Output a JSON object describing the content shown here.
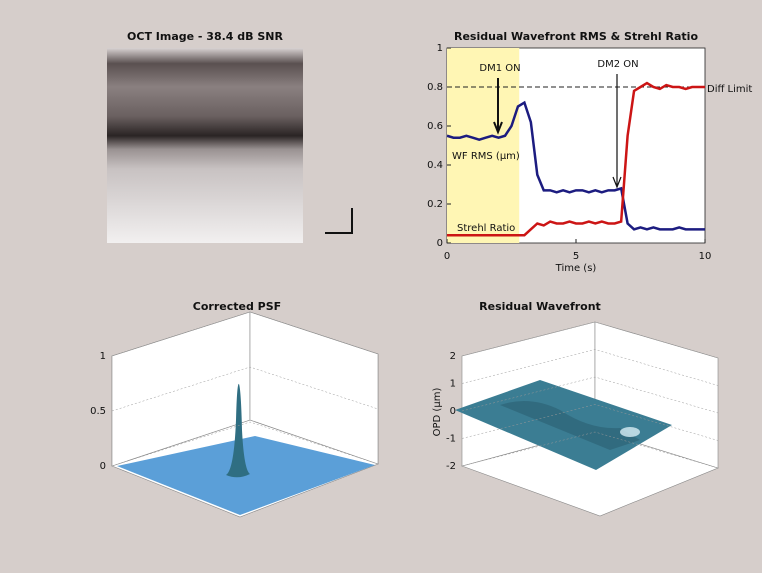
{
  "chart_data": [
    {
      "type": "image",
      "title": "OCT Image - 38.4 dB SNR"
    },
    {
      "type": "line",
      "title": "Residual Wavefront RMS & Strehl Ratio",
      "xlabel": "Time (s)",
      "x": [
        0,
        0.25,
        0.5,
        0.75,
        1,
        1.25,
        1.5,
        1.75,
        2,
        2.25,
        2.5,
        2.75,
        3,
        3.25,
        3.5,
        3.75,
        4,
        4.25,
        4.5,
        4.75,
        5,
        5.25,
        5.5,
        5.75,
        6,
        6.25,
        6.5,
        6.75,
        7,
        7.25,
        7.5,
        7.75,
        8,
        8.25,
        8.5,
        8.75,
        9,
        9.25,
        9.5,
        9.75,
        10
      ],
      "series": [
        {
          "name": "WF RMS (μm)",
          "color": "#1c1c80",
          "values": [
            0.55,
            0.54,
            0.54,
            0.55,
            0.54,
            0.53,
            0.54,
            0.55,
            0.54,
            0.55,
            0.6,
            0.7,
            0.72,
            0.62,
            0.35,
            0.27,
            0.27,
            0.26,
            0.27,
            0.26,
            0.27,
            0.27,
            0.26,
            0.27,
            0.26,
            0.27,
            0.27,
            0.28,
            0.1,
            0.07,
            0.08,
            0.07,
            0.08,
            0.07,
            0.07,
            0.07,
            0.08,
            0.07,
            0.07,
            0.07,
            0.07
          ]
        },
        {
          "name": "Strehl Ratio",
          "color": "#cc1515",
          "values": [
            0.04,
            0.04,
            0.04,
            0.04,
            0.04,
            0.04,
            0.04,
            0.04,
            0.04,
            0.04,
            0.04,
            0.04,
            0.04,
            0.07,
            0.1,
            0.09,
            0.11,
            0.1,
            0.1,
            0.11,
            0.1,
            0.1,
            0.11,
            0.1,
            0.11,
            0.1,
            0.1,
            0.11,
            0.55,
            0.78,
            0.8,
            0.82,
            0.8,
            0.79,
            0.81,
            0.8,
            0.8,
            0.79,
            0.8,
            0.8,
            0.8
          ]
        }
      ],
      "annotations": [
        "DM1 ON",
        "DM2 ON",
        "Diff Limit"
      ],
      "reference_y": 0.8,
      "shaded_x": [
        0,
        2.8
      ],
      "xlim": [
        0,
        10
      ],
      "xticks": [
        0,
        5,
        10
      ],
      "ylim": [
        0,
        1
      ],
      "yticks": [
        0,
        0.2,
        0.4,
        0.6,
        0.8,
        1
      ]
    },
    {
      "type": "surface",
      "title": "Corrected PSF",
      "zlim": [
        0,
        1
      ],
      "zticks": [
        0,
        0.5,
        1
      ]
    },
    {
      "type": "surface",
      "title": "Residual Wavefront",
      "zlabel": "OPD (μm)",
      "zlim": [
        -2,
        2
      ],
      "zticks": [
        -2,
        -1,
        0,
        1,
        2
      ]
    }
  ]
}
